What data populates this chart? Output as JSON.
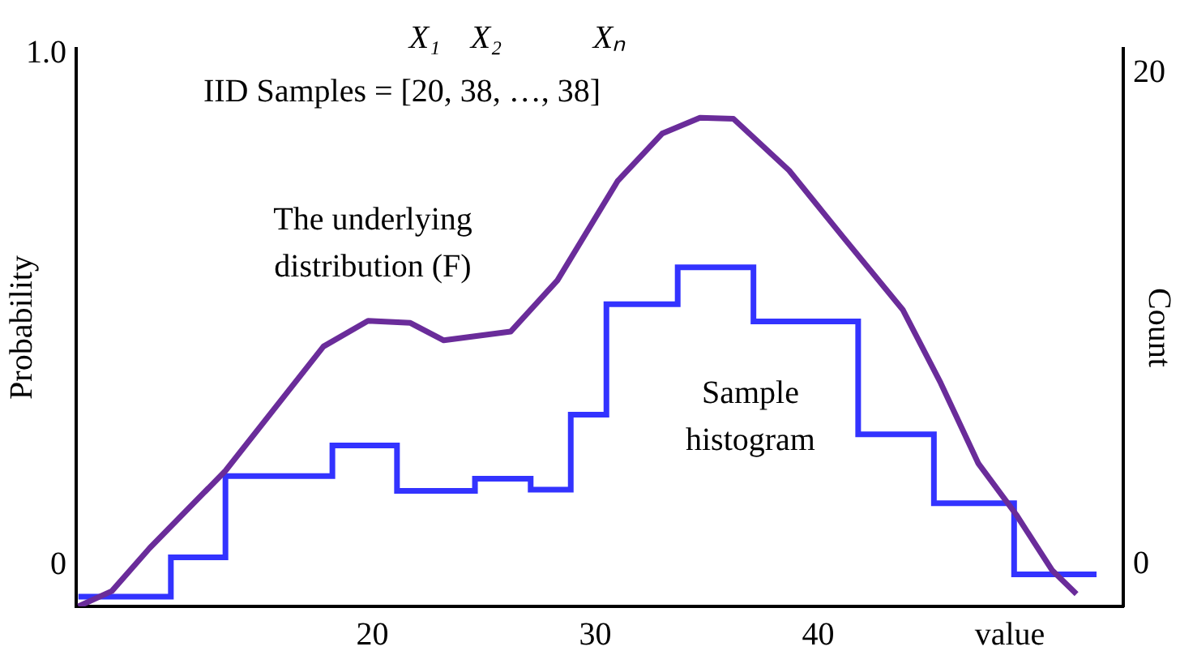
{
  "chart_data": {
    "type": "line",
    "xlabel": "value",
    "ylabel": "Probability",
    "y2label": "Count",
    "annotations": [
      "IID Samples = [20, 38, …, 38]",
      "X₁",
      "X₂",
      "Xₙ"
    ],
    "xlim": [
      6.7,
      53.7
    ],
    "xticks": [
      20,
      30,
      40
    ],
    "ylim": [
      -0.08,
      1.01
    ],
    "yticks": [
      0,
      {
        "value": 1,
        "label": "1.0"
      }
    ],
    "y2lim": [
      -1.7,
      21
    ],
    "y2ticks": [
      0,
      20
    ],
    "grid": false,
    "legend": false,
    "marker": "none",
    "series": [
      {
        "name": "The underlying distribution (F)",
        "type": "line",
        "axis": "y",
        "color": "#6a2c9a",
        "x": [
          6.8,
          8.3,
          10.0,
          13.4,
          17.8,
          19.8,
          21.7,
          23.2,
          26.2,
          28.3,
          31.0,
          33.0,
          34.7,
          36.2,
          38.7,
          41.1,
          43.8,
          45.5,
          47.2,
          48.9,
          50.5,
          51.6
        ],
        "values": [
          -0.08,
          -0.05,
          0.034,
          0.185,
          0.428,
          0.478,
          0.474,
          0.44,
          0.457,
          0.557,
          0.751,
          0.844,
          0.875,
          0.873,
          0.772,
          0.643,
          0.5,
          0.357,
          0.199,
          0.099,
          -0.009,
          -0.056
        ]
      },
      {
        "name": "Sample histogram",
        "type": "histogram",
        "axis": "y2",
        "color": "#3333ff",
        "bins": [
          6.8,
          10.95,
          13.4,
          18.2,
          21.1,
          24.6,
          27.1,
          28.9,
          30.5,
          33.7,
          37.1,
          41.8,
          45.2,
          48.8,
          52.5
        ],
        "values": [
          -1.3,
          0.3,
          3.6,
          4.85,
          3.0,
          3.5,
          3.05,
          6.1,
          10.6,
          12.1,
          9.9,
          5.3,
          2.5,
          -0.4
        ]
      }
    ]
  }
}
